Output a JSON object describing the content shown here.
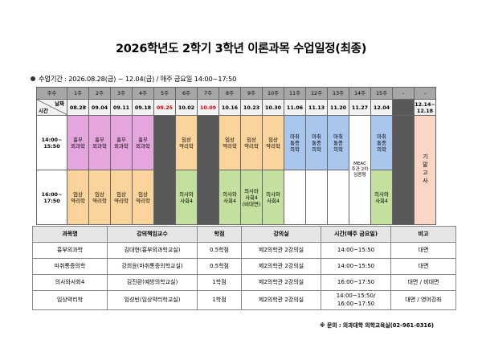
{
  "title": "2026학년도 2학기 3학년 이론과목 수업일정(최종)",
  "info": "수업기간 : 2026.08.28(금) ~ 12.04(금) / 매주 금요일 14:00~17:50",
  "schedule": {
    "header_label": "주수",
    "corner_date": "날짜",
    "corner_time": "시간",
    "weeks": [
      "1주",
      "2주",
      "3주",
      "4주",
      "5주",
      "6주",
      "7주",
      "8주",
      "9주",
      "10주",
      "11주",
      "12주",
      "13주",
      "14주",
      "15주",
      "-",
      "-"
    ],
    "dates": [
      "08.28",
      "09.04",
      "09.11",
      "09.18",
      "09.25",
      "10.02",
      "10.09",
      "10.16",
      "10.23",
      "10.30",
      "11.06",
      "11.13",
      "11.20",
      "11.27",
      "12.04",
      "",
      "12.14~\n12.18"
    ],
    "time1": "14:00~\n15:50",
    "time2": "16:00~\n17:50",
    "row1": [
      "흉부\n외과학",
      "흉부\n외과학",
      "흉부\n외과학",
      "흉부\n외과학",
      "",
      "임상\n약리학",
      "",
      "임상\n약리학",
      "임상\n약리학",
      "임상\n약리학",
      "마취\n통증\n의학",
      "마취\n통증\n의학",
      "마취\n통증\n의학",
      "MEAC\n주관 2차\n임종평",
      "마취\n통증\n의학",
      "",
      ""
    ],
    "row2": [
      "임상\n약리학",
      "임상\n약리학",
      "임상\n약리학",
      "임상\n약리학",
      "",
      "의사와\n사회4",
      "",
      "의사와\n사회4",
      "의사와\n사회4\n(비대면)",
      "의사와\n사회4",
      "",
      "",
      "",
      "",
      "의사와\n사회4",
      "",
      ""
    ],
    "exam_label": "기말고사"
  },
  "courses": {
    "headers": [
      "과목명",
      "강의책임교수",
      "학점",
      "강의실",
      "시간(매주 금요일)",
      "비고"
    ],
    "rows": [
      [
        "흉부외과학",
        "김대현(흉부외과학교실)",
        "0.5학점",
        "제2의학관 2강의실",
        "14:00~15:50",
        "대면"
      ],
      [
        "마취통증의학",
        "강희윤(마취통증의학교실)",
        "0.5학점",
        "제2의학관 2강의실",
        "14:00~15:50",
        "대면"
      ],
      [
        "의사와사회4",
        "김진환(예방의학교실)",
        "1학점",
        "제2의학관 2강의실",
        "16:00~17:50",
        "대면 / 비대면"
      ],
      [
        "임상약리학",
        "임성빈(임상약리학교실)",
        "1학점",
        "제2의학관 2강의실",
        "14:00~15:50/\n16:00~17:50",
        "대면 / 영어강좌"
      ]
    ]
  },
  "footer": "※ 문의 : 의과대학 의학교육실(02-961-0316)",
  "colors": {
    "thoracic": "#e4a6dc",
    "pharmacology": "#fbd49c",
    "society": "#c4e09e",
    "anesthesia": "#a9c7ec",
    "holiday": "#595959",
    "exam": "#fbd6c4",
    "red_date": "#e00000"
  }
}
